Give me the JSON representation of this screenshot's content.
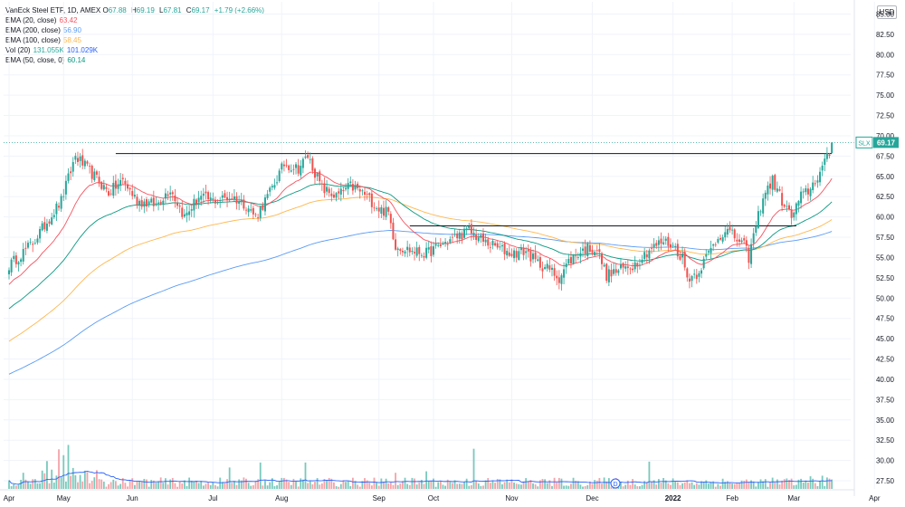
{
  "legend": {
    "title": "VanEck Steel ETF, 1D, AMEX",
    "ohlc": [
      {
        "label": "O",
        "value": "67.88"
      },
      {
        "label": "H",
        "value": "69.19"
      },
      {
        "label": "L",
        "value": "67.81"
      },
      {
        "label": "C",
        "value": "69.17"
      }
    ],
    "change": "+1.79 (+2.66%)",
    "indicators": [
      {
        "name": "EMA (20, close)",
        "value": "63.42",
        "color": "#f7525f"
      },
      {
        "name": "EMA (200, close)",
        "value": "56.90",
        "color": "#5b9cf6"
      },
      {
        "name": "EMA (100, close)",
        "value": "58.45",
        "color": "#ffb74d"
      },
      {
        "name": "Vol (20)",
        "value": "131.055K",
        "value2": "101.029K",
        "color": "#26a69a",
        "color2": "#2962ff"
      },
      {
        "name": "EMA (50, close, 0)",
        "value": "60.14",
        "color": "#089981"
      }
    ]
  },
  "currency": "USD",
  "price_tag": {
    "symbol": "SLX",
    "value": "69.17"
  },
  "event_marker": "D",
  "colors": {
    "up": "#26a69a",
    "down": "#ef5350",
    "vol_up": "#79c9bc",
    "vol_down": "#f4a3a8",
    "ema20": "#f7525f",
    "ema50": "#089981",
    "ema100": "#ffb74d",
    "ema200": "#5b9cf6",
    "vol_ma": "#2962ff",
    "grid": "#f0f3fa",
    "hline": "#131722"
  },
  "chart_data": {
    "type": "candlestick",
    "y_axis": {
      "range": [
        26.5,
        86.5
      ],
      "ticks": [
        "85.00",
        "82.50",
        "80.00",
        "77.50",
        "75.00",
        "72.50",
        "70.00",
        "67.50",
        "65.00",
        "62.50",
        "60.00",
        "57.50",
        "55.00",
        "52.50",
        "50.00",
        "47.50",
        "45.00",
        "42.50",
        "40.00",
        "37.50",
        "35.00",
        "32.50",
        "30.00",
        "27.50"
      ]
    },
    "x_axis": {
      "ticks": [
        {
          "label": "Apr",
          "bold": false
        },
        {
          "label": "May",
          "bold": false
        },
        {
          "label": "Jun",
          "bold": false
        },
        {
          "label": "Jul",
          "bold": false
        },
        {
          "label": "Aug",
          "bold": false
        },
        {
          "label": "Sep",
          "bold": false
        },
        {
          "label": "Oct",
          "bold": false
        },
        {
          "label": "Nov",
          "bold": false
        },
        {
          "label": "Dec",
          "bold": false
        },
        {
          "label": "2022",
          "bold": true
        },
        {
          "label": "Feb",
          "bold": false
        },
        {
          "label": "Mar",
          "bold": false
        },
        {
          "label": "Apr",
          "bold": false
        }
      ],
      "tick_bars": [
        0,
        23,
        52,
        86,
        115,
        156,
        179,
        212,
        246,
        280,
        305,
        331,
        365
      ]
    },
    "horizontal_lines": [
      {
        "price": 67.8,
        "from_bar": 45,
        "to_bar": 347
      },
      {
        "price": 58.9,
        "from_bar": 169,
        "to_bar": 332
      }
    ],
    "anchors": [
      {
        "bar": 0,
        "price": 54.0
      },
      {
        "bar": 10,
        "price": 56.8
      },
      {
        "bar": 22,
        "price": 62.0
      },
      {
        "bar": 28,
        "price": 67.5
      },
      {
        "bar": 36,
        "price": 65.0
      },
      {
        "bar": 42,
        "price": 63.0
      },
      {
        "bar": 48,
        "price": 64.5
      },
      {
        "bar": 54,
        "price": 62.0
      },
      {
        "bar": 62,
        "price": 61.5
      },
      {
        "bar": 68,
        "price": 63.5
      },
      {
        "bar": 74,
        "price": 60.0
      },
      {
        "bar": 80,
        "price": 62.5
      },
      {
        "bar": 86,
        "price": 62.0
      },
      {
        "bar": 94,
        "price": 62.5
      },
      {
        "bar": 100,
        "price": 61.5
      },
      {
        "bar": 104,
        "price": 60.0
      },
      {
        "bar": 110,
        "price": 63.0
      },
      {
        "bar": 116,
        "price": 66.5
      },
      {
        "bar": 122,
        "price": 66.0
      },
      {
        "bar": 126,
        "price": 67.5
      },
      {
        "bar": 132,
        "price": 63.5
      },
      {
        "bar": 138,
        "price": 62.5
      },
      {
        "bar": 144,
        "price": 63.8
      },
      {
        "bar": 150,
        "price": 62.8
      },
      {
        "bar": 156,
        "price": 61.0
      },
      {
        "bar": 160,
        "price": 60.5
      },
      {
        "bar": 163,
        "price": 56.5
      },
      {
        "bar": 170,
        "price": 55.8
      },
      {
        "bar": 176,
        "price": 55.5
      },
      {
        "bar": 182,
        "price": 56.5
      },
      {
        "bar": 188,
        "price": 57.5
      },
      {
        "bar": 194,
        "price": 58.3
      },
      {
        "bar": 200,
        "price": 57.0
      },
      {
        "bar": 206,
        "price": 56.2
      },
      {
        "bar": 212,
        "price": 55.5
      },
      {
        "bar": 218,
        "price": 55.8
      },
      {
        "bar": 222,
        "price": 54.5
      },
      {
        "bar": 228,
        "price": 53.5
      },
      {
        "bar": 232,
        "price": 52.5
      },
      {
        "bar": 236,
        "price": 54.5
      },
      {
        "bar": 240,
        "price": 55.5
      },
      {
        "bar": 244,
        "price": 56.2
      },
      {
        "bar": 248,
        "price": 56.0
      },
      {
        "bar": 252,
        "price": 52.8
      },
      {
        "bar": 258,
        "price": 53.5
      },
      {
        "bar": 264,
        "price": 54.2
      },
      {
        "bar": 270,
        "price": 56.0
      },
      {
        "bar": 276,
        "price": 57.0
      },
      {
        "bar": 280,
        "price": 56.5
      },
      {
        "bar": 284,
        "price": 55.0
      },
      {
        "bar": 286,
        "price": 52.5
      },
      {
        "bar": 290,
        "price": 53.0
      },
      {
        "bar": 294,
        "price": 55.0
      },
      {
        "bar": 298,
        "price": 57.0
      },
      {
        "bar": 302,
        "price": 58.5
      },
      {
        "bar": 306,
        "price": 57.5
      },
      {
        "bar": 310,
        "price": 56.5
      },
      {
        "bar": 312,
        "price": 55.0
      },
      {
        "bar": 315,
        "price": 59.0
      },
      {
        "bar": 318,
        "price": 62.5
      },
      {
        "bar": 322,
        "price": 64.5
      },
      {
        "bar": 326,
        "price": 62.0
      },
      {
        "bar": 330,
        "price": 60.0
      },
      {
        "bar": 334,
        "price": 62.5
      },
      {
        "bar": 338,
        "price": 63.5
      },
      {
        "bar": 342,
        "price": 65.5
      },
      {
        "bar": 346,
        "price": 67.8
      },
      {
        "bar": 347,
        "price": 69.17
      }
    ],
    "volume": {
      "range_max": 42.0,
      "spikes": [
        {
          "bar": 25,
          "value": 41.5
        },
        {
          "bar": 21,
          "value": 40.0
        },
        {
          "bar": 196,
          "value": 40.2
        },
        {
          "bar": 23,
          "value": 38.0
        },
        {
          "bar": 16,
          "value": 36.0
        },
        {
          "bar": 106,
          "value": 35.5
        },
        {
          "bar": 270,
          "value": 35.8
        },
        {
          "bar": 125,
          "value": 35.5
        },
        {
          "bar": 93,
          "value": 33.8
        },
        {
          "bar": 6,
          "value": 32.0
        },
        {
          "bar": 163,
          "value": 32.0
        },
        {
          "bar": 176,
          "value": 32.5
        },
        {
          "bar": 343,
          "value": 31.0
        },
        {
          "bar": 338,
          "value": 30.8
        }
      ]
    }
  }
}
